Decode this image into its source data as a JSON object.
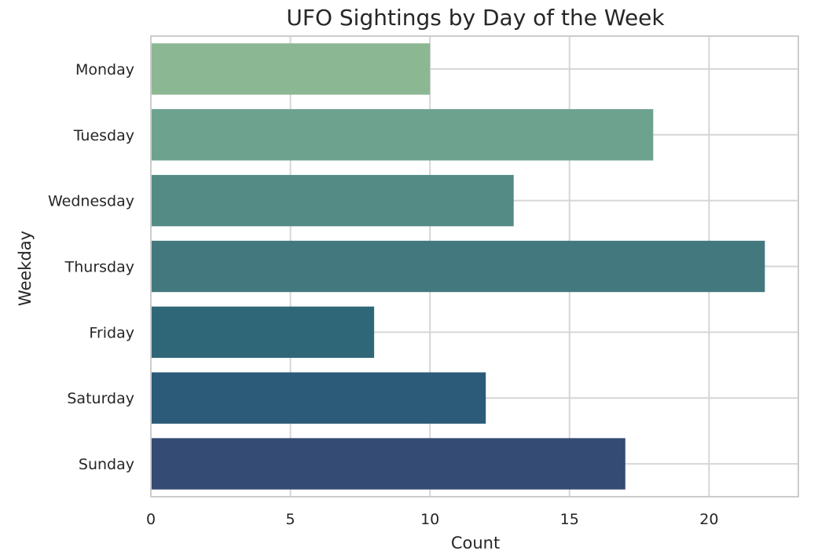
{
  "chart_data": {
    "type": "bar",
    "orientation": "horizontal",
    "title": "UFO Sightings by Day of the Week",
    "xlabel": "Count",
    "ylabel": "Weekday",
    "categories": [
      "Monday",
      "Tuesday",
      "Wednesday",
      "Thursday",
      "Friday",
      "Saturday",
      "Sunday"
    ],
    "values": [
      10,
      18,
      13,
      22,
      8,
      12,
      17
    ],
    "colors": [
      "#8cb793",
      "#6ca28e",
      "#548c85",
      "#43797e",
      "#306778",
      "#2c5a79",
      "#344b73"
    ],
    "xlim": [
      0,
      23.2
    ],
    "xticks": [
      0,
      5,
      10,
      15,
      20
    ],
    "grid": true
  }
}
